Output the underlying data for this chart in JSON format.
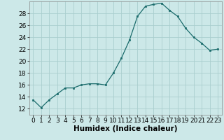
{
  "x": [
    0,
    1,
    2,
    3,
    4,
    5,
    6,
    7,
    8,
    9,
    10,
    11,
    12,
    13,
    14,
    15,
    16,
    17,
    18,
    19,
    20,
    21,
    22,
    23
  ],
  "y": [
    13.5,
    12.2,
    13.5,
    14.5,
    15.5,
    15.5,
    16.0,
    16.2,
    16.2,
    16.0,
    18.0,
    20.5,
    23.5,
    27.5,
    29.2,
    29.5,
    29.7,
    28.5,
    27.5,
    25.5,
    24.0,
    23.0,
    21.8,
    22.0
  ],
  "bg_color": "#cce8e8",
  "grid_color": "#aacece",
  "line_color": "#1a6b6b",
  "marker_color": "#1a6b6b",
  "xlabel": "Humidex (Indice chaleur)",
  "ylim": [
    11,
    30
  ],
  "xlim": [
    -0.5,
    23.5
  ],
  "yticks": [
    12,
    14,
    16,
    18,
    20,
    22,
    24,
    26,
    28
  ],
  "xticks": [
    0,
    1,
    2,
    3,
    4,
    5,
    6,
    7,
    8,
    9,
    10,
    11,
    12,
    13,
    14,
    15,
    16,
    17,
    18,
    19,
    20,
    21,
    22,
    23
  ],
  "tick_fontsize": 6.5,
  "xlabel_fontsize": 7.5
}
